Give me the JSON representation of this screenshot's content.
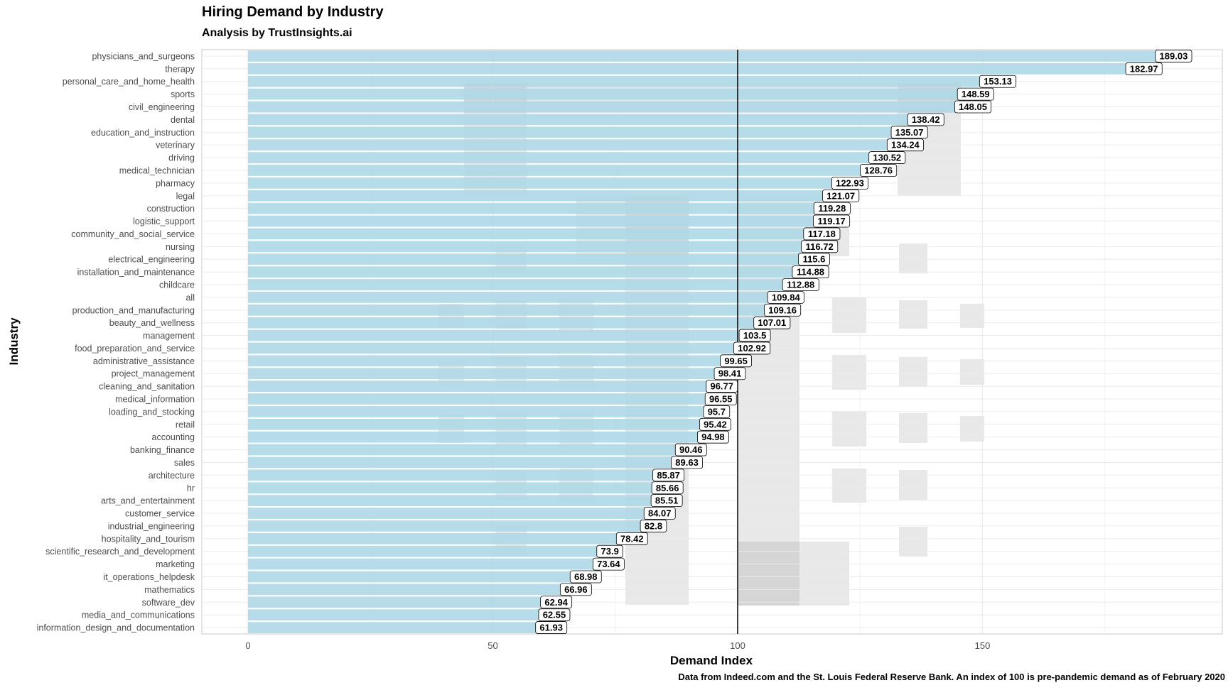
{
  "title": "Hiring Demand by Industry",
  "subtitle": "Analysis by TrustInsights.ai",
  "caption": "Data from Indeed.com and the St. Louis Federal Reserve Bank. An index of 100 is pre-pandemic demand as of February 2020",
  "colors": {
    "bar": "#add8e6",
    "label_fill": "#ffffff",
    "grid": "#ebebeb",
    "reference_line": "#000000",
    "watermark": "#8c8c8c"
  },
  "chart_data": {
    "type": "bar",
    "orientation": "horizontal",
    "xlabel": "Demand Index",
    "ylabel": "Industry",
    "xlim": [
      0,
      198
    ],
    "xticks": [
      0,
      50,
      100,
      150
    ],
    "reference_line": 100,
    "grid": true,
    "categories": [
      "physicians_and_surgeons",
      "therapy",
      "personal_care_and_home_health",
      "sports",
      "civil_engineering",
      "dental",
      "education_and_instruction",
      "veterinary",
      "driving",
      "medical_technician",
      "pharmacy",
      "legal",
      "construction",
      "logistic_support",
      "community_and_social_service",
      "nursing",
      "electrical_engineering",
      "installation_and_maintenance",
      "childcare",
      "all",
      "production_and_manufacturing",
      "beauty_and_wellness",
      "management",
      "food_preparation_and_service",
      "administrative_assistance",
      "project_management",
      "cleaning_and_sanitation",
      "medical_information",
      "loading_and_stocking",
      "retail",
      "accounting",
      "banking_finance",
      "sales",
      "architecture",
      "hr",
      "arts_and_entertainment",
      "customer_service",
      "industrial_engineering",
      "hospitality_and_tourism",
      "scientific_research_and_development",
      "marketing",
      "it_operations_helpdesk",
      "mathematics",
      "software_dev",
      "media_and_communications",
      "information_design_and_documentation"
    ],
    "values": [
      189.03,
      182.97,
      153.13,
      148.59,
      148.05,
      138.42,
      135.07,
      134.24,
      130.52,
      128.76,
      122.93,
      121.07,
      119.28,
      119.17,
      117.18,
      116.72,
      115.6,
      114.88,
      112.88,
      109.84,
      109.16,
      107.01,
      103.5,
      102.92,
      99.65,
      98.41,
      96.77,
      96.55,
      95.7,
      95.42,
      94.98,
      90.46,
      89.63,
      85.87,
      85.66,
      85.51,
      84.07,
      82.8,
      78.42,
      73.9,
      73.64,
      68.98,
      66.96,
      62.94,
      62.55,
      61.93
    ]
  }
}
